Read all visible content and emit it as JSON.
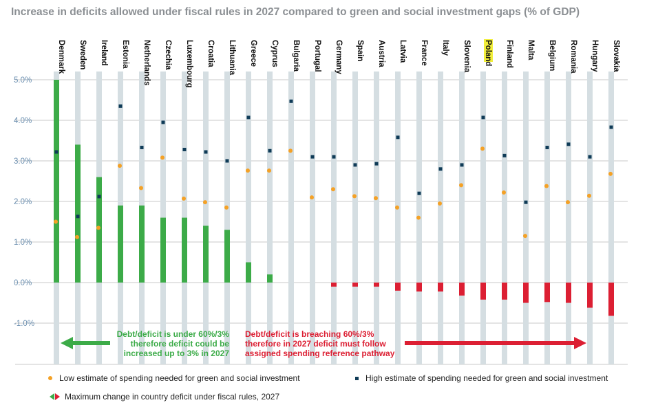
{
  "title": "Increase in deficits allowed under fiscal rules in 2027 compared to green and social investment gaps (% of GDP)",
  "colors": {
    "green": "#3cab48",
    "red": "#dc1f33",
    "low_marker": "#f4a126",
    "high_marker": "#0f3b57",
    "column_bg": "#d5dee2",
    "gridline": "#c9c9c9",
    "highlight": "#f1ee3a"
  },
  "annotations": {
    "green_text": [
      "Debt/deficit is under 60%/3%",
      "therefore deficit could be",
      "increased up to 3% in 2027"
    ],
    "red_text": [
      "Debt/deficit is breaching 60%/3%",
      "therefore in 2027 deficit must follow",
      "assigned spending reference pathway"
    ]
  },
  "legend": {
    "low": "Low estimate of spending needed for green and social investment",
    "high": "High estimate of spending needed for green and social investment",
    "arrows": "Maximum change in country deficit under fiscal rules, 2027"
  },
  "chart_data": {
    "type": "bar",
    "title": "Increase in deficits allowed under fiscal rules in 2027 compared to green and social investment gaps (% of GDP)",
    "xlabel": "",
    "ylabel": "",
    "ylim": [
      -2.0,
      5.0
    ],
    "yticks": [
      "5.0%",
      "4.0%",
      "3.0%",
      "2.0%",
      "1.0%",
      "0.0%",
      "-1.0%"
    ],
    "ytick_values": [
      5.0,
      4.0,
      3.0,
      2.0,
      1.0,
      0.0,
      -1.0
    ],
    "grid": true,
    "legend_position": "bottom",
    "highlighted_category": "Poland",
    "categories": [
      "Denmark",
      "Sweden",
      "Ireland",
      "Estonia",
      "Netherlands",
      "Czechia",
      "Luxembourg",
      "Croatia",
      "Lithuania",
      "Greece",
      "Cyprus",
      "Bulgaria",
      "Portugal",
      "Germany",
      "Spain",
      "Austria",
      "Latvia",
      "France",
      "Italy",
      "Slovenia",
      "Poland",
      "Finland",
      "Malta",
      "Belgium",
      "Romania",
      "Hungary",
      "Slovakia"
    ],
    "series": [
      {
        "kind": "bar",
        "values": [
          5.0,
          3.4,
          2.6,
          1.9,
          1.9,
          1.6,
          1.6,
          1.4,
          1.3,
          0.5,
          0.2,
          0.0,
          0.0,
          -0.1,
          -0.1,
          -0.1,
          -0.2,
          -0.22,
          -0.22,
          -0.32,
          -0.42,
          -0.42,
          -0.5,
          -0.48,
          -0.5,
          -0.62,
          -0.82
        ]
      },
      {
        "name": "Low estimate of spending needed for green and social investment",
        "kind": "marker",
        "values": [
          1.5,
          1.12,
          1.35,
          2.88,
          2.33,
          3.08,
          2.07,
          1.98,
          1.85,
          2.76,
          2.76,
          3.25,
          2.1,
          2.3,
          2.13,
          2.08,
          1.85,
          1.6,
          1.95,
          2.4,
          3.3,
          2.22,
          1.15,
          2.38,
          1.98,
          2.14,
          2.68
        ]
      },
      {
        "name": "High estimate of spending needed for green and social investment",
        "kind": "marker",
        "values": [
          3.22,
          1.63,
          2.12,
          4.35,
          3.33,
          3.95,
          3.28,
          3.22,
          3.0,
          4.07,
          3.25,
          4.47,
          3.1,
          3.1,
          2.9,
          2.93,
          3.58,
          2.2,
          2.8,
          2.9,
          4.07,
          3.13,
          1.98,
          3.33,
          3.41,
          3.1,
          3.83
        ]
      }
    ]
  }
}
